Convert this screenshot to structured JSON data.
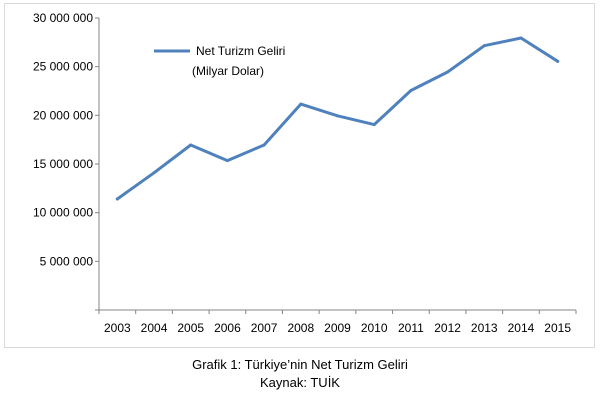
{
  "chart_data": {
    "type": "line",
    "x": [
      "2003",
      "2004",
      "2005",
      "2006",
      "2007",
      "2008",
      "2009",
      "2010",
      "2011",
      "2012",
      "2013",
      "2014",
      "2015"
    ],
    "series": [
      {
        "name": "Net Turizm Geliri",
        "name_line2": "(Milyar Dolar)",
        "color": "#4f81bd",
        "values": [
          11400000,
          14100000,
          16950000,
          15350000,
          16950000,
          21150000,
          19950000,
          19050000,
          22550000,
          24450000,
          27150000,
          27950000,
          25550000
        ]
      }
    ],
    "yticks": [
      "30 000 000",
      "25 000 000",
      "20 000 000",
      "15 000 000",
      "10 000 000",
      "5 000 000"
    ],
    "ylim": [
      0,
      30000000
    ],
    "grid": false,
    "legend_position": "top-left"
  },
  "caption": {
    "title": "Grafik 1: Türkiye’nin Net Turizm Geliri",
    "source": "Kaynak: TUİK"
  }
}
